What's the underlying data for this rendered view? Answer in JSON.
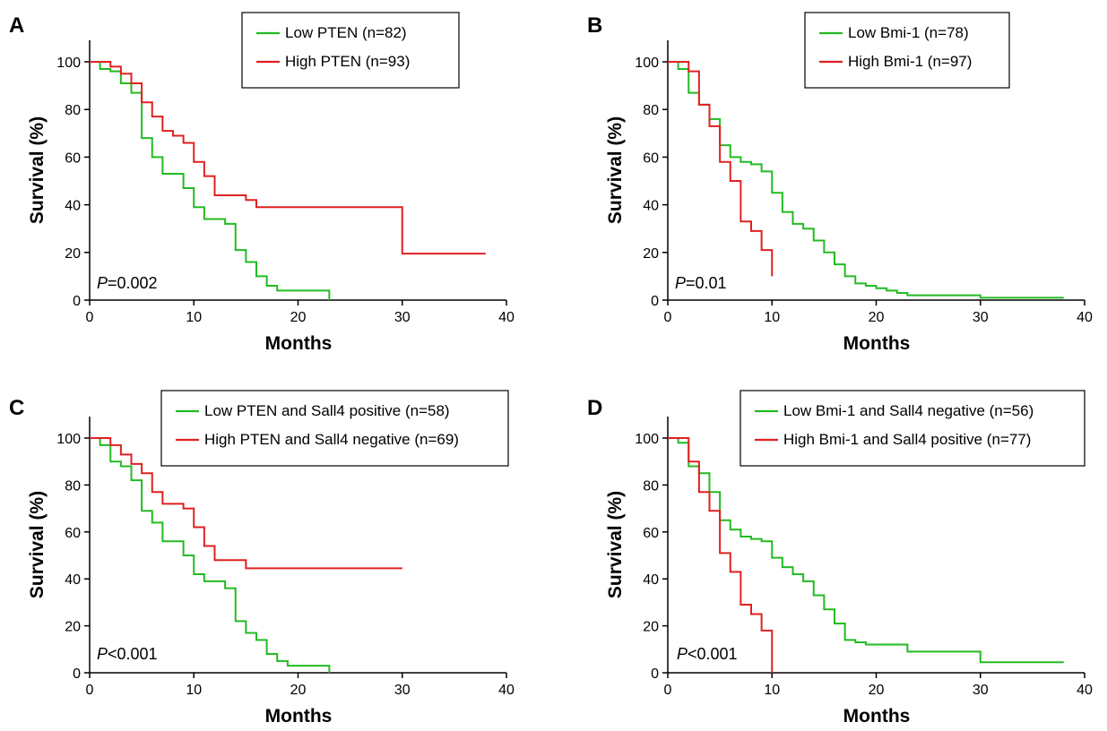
{
  "colors": {
    "green": "#22bb22",
    "red": "#e02020",
    "axis": "#000000"
  },
  "chart_data": [
    {
      "panel": "A",
      "type": "line",
      "step": true,
      "xlabel": "Months",
      "ylabel": "Survival (%)",
      "xlim": [
        0,
        40
      ],
      "ylim": [
        0,
        100
      ],
      "xticks": [
        0,
        10,
        20,
        30,
        40
      ],
      "yticks": [
        0,
        20,
        40,
        60,
        80,
        100
      ],
      "pvalue": {
        "p": "P",
        "rest": "=0.002"
      },
      "legend": [
        "Low PTEN (n=82)",
        "High PTEN (n=93)"
      ],
      "series": [
        {
          "name": "Low PTEN (n=82)",
          "color": "green",
          "x": [
            0,
            1,
            2,
            3,
            4,
            5,
            6,
            7,
            9,
            10,
            11,
            13,
            14,
            15,
            16,
            17,
            18,
            21,
            23,
            23
          ],
          "y": [
            100,
            97,
            96,
            91,
            87,
            68,
            60,
            53,
            47,
            39,
            34,
            32,
            21,
            16,
            10,
            6,
            4,
            4,
            4,
            0
          ]
        },
        {
          "name": "High PTEN (n=93)",
          "color": "red",
          "x": [
            0,
            2,
            3,
            4,
            5,
            6,
            7,
            8,
            9,
            10,
            11,
            12,
            15,
            16,
            29,
            30,
            38
          ],
          "y": [
            100,
            98,
            95,
            91,
            83,
            77,
            71,
            69,
            66,
            58,
            52,
            44,
            42,
            39,
            39,
            19.5,
            19.5
          ]
        }
      ]
    },
    {
      "panel": "B",
      "type": "line",
      "step": true,
      "xlabel": "Months",
      "ylabel": "Survival (%)",
      "xlim": [
        0,
        40
      ],
      "ylim": [
        0,
        100
      ],
      "xticks": [
        0,
        10,
        20,
        30,
        40
      ],
      "yticks": [
        0,
        20,
        40,
        60,
        80,
        100
      ],
      "pvalue": {
        "p": "P",
        "rest": "=0.01"
      },
      "legend": [
        "Low Bmi-1 (n=78)",
        "High Bmi-1 (n=97)"
      ],
      "series": [
        {
          "name": "Low Bmi-1 (n=78)",
          "color": "green",
          "x": [
            0,
            1,
            2,
            3,
            4,
            5,
            6,
            7,
            8,
            9,
            10,
            11,
            12,
            13,
            14,
            15,
            16,
            17,
            18,
            19,
            20,
            21,
            22,
            23,
            30,
            38
          ],
          "y": [
            100,
            97,
            87,
            82,
            76,
            65,
            60,
            58,
            57,
            54,
            45,
            37,
            32,
            30,
            25,
            20,
            15,
            10,
            7,
            6,
            5,
            4,
            3,
            2,
            1,
            1
          ]
        },
        {
          "name": "High Bmi-1 (n=97)",
          "color": "red",
          "x": [
            0,
            2,
            3,
            4,
            5,
            6,
            7,
            8,
            9,
            10,
            10
          ],
          "y": [
            100,
            96,
            82,
            73,
            58,
            50,
            33,
            29,
            21,
            21,
            10
          ]
        }
      ]
    },
    {
      "panel": "C",
      "type": "line",
      "step": true,
      "xlabel": "Months",
      "ylabel": "Survival (%)",
      "xlim": [
        0,
        40
      ],
      "ylim": [
        0,
        100
      ],
      "xticks": [
        0,
        10,
        20,
        30,
        40
      ],
      "yticks": [
        0,
        20,
        40,
        60,
        80,
        100
      ],
      "pvalue": {
        "p": "P",
        "rest": "<0.001"
      },
      "legend": [
        "Low PTEN and Sall4 positive (n=58)",
        "High PTEN and Sall4 negative (n=69)"
      ],
      "series": [
        {
          "name": "Low PTEN and Sall4 positive (n=58)",
          "color": "green",
          "x": [
            0,
            1,
            2,
            3,
            4,
            5,
            6,
            7,
            9,
            10,
            11,
            13,
            14,
            15,
            16,
            17,
            18,
            19,
            23,
            23
          ],
          "y": [
            100,
            97,
            90,
            88,
            82,
            69,
            64,
            56,
            50,
            42,
            39,
            36,
            22,
            17,
            14,
            8,
            5,
            3,
            3,
            0
          ]
        },
        {
          "name": "High PTEN and Sall4 negative (n=69)",
          "color": "red",
          "x": [
            0,
            2,
            3,
            4,
            5,
            6,
            7,
            9,
            10,
            11,
            12,
            15,
            30
          ],
          "y": [
            100,
            97,
            93,
            89,
            85,
            77,
            72,
            70,
            62,
            54,
            48,
            44.5,
            44.5
          ]
        }
      ]
    },
    {
      "panel": "D",
      "type": "line",
      "step": true,
      "xlabel": "Months",
      "ylabel": "Survival (%)",
      "xlim": [
        0,
        40
      ],
      "ylim": [
        0,
        100
      ],
      "xticks": [
        0,
        10,
        20,
        30,
        40
      ],
      "yticks": [
        0,
        20,
        40,
        60,
        80,
        100
      ],
      "pvalue": {
        "p": "P",
        "rest": "<0.001"
      },
      "legend": [
        "Low Bmi-1 and Sall4 negative (n=56)",
        "High Bmi-1 and Sall4 positive (n=77)"
      ],
      "series": [
        {
          "name": "Low Bmi-1 and Sall4 negative (n=56)",
          "color": "green",
          "x": [
            0,
            1,
            2,
            3,
            4,
            5,
            6,
            7,
            8,
            9,
            10,
            11,
            12,
            13,
            14,
            15,
            16,
            17,
            18,
            19,
            23,
            30,
            38
          ],
          "y": [
            100,
            98,
            88,
            85,
            77,
            65,
            61,
            58,
            57,
            56,
            49,
            45,
            42,
            39,
            33,
            27,
            21,
            14,
            13,
            12,
            9,
            4.5,
            4.5
          ]
        },
        {
          "name": "High Bmi-1 and Sall4 positive (n=77)",
          "color": "red",
          "x": [
            0,
            2,
            3,
            4,
            5,
            6,
            7,
            8,
            9,
            10,
            10
          ],
          "y": [
            100,
            90,
            77,
            69,
            51,
            43,
            29,
            25,
            18,
            18,
            0
          ]
        }
      ]
    }
  ]
}
